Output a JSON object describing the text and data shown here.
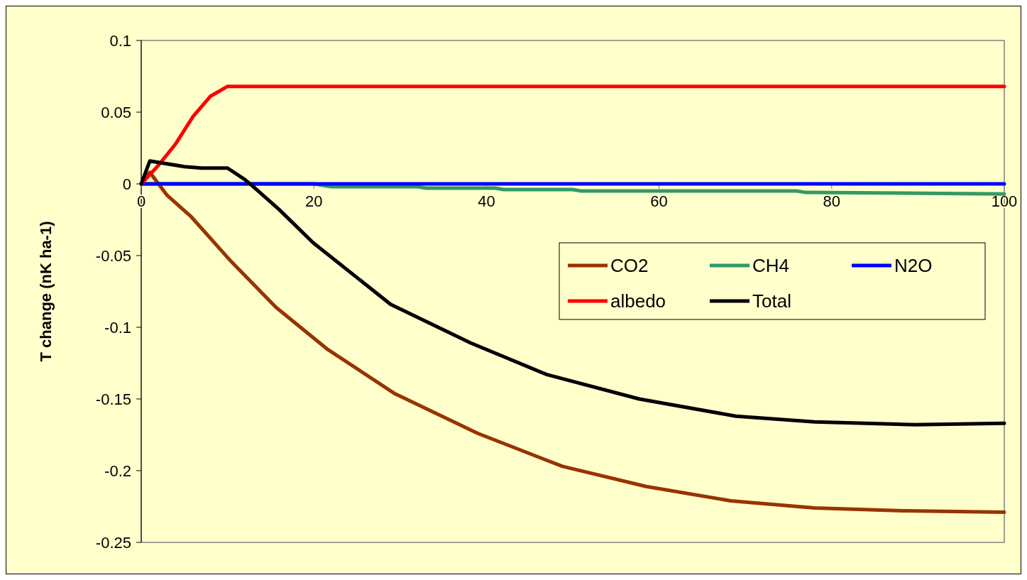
{
  "chart_data": {
    "type": "line",
    "ylabel": "T change (nK ha-1)",
    "xlim": [
      0,
      100
    ],
    "xticks": [
      0,
      20,
      40,
      60,
      80,
      100
    ],
    "ylim": [
      -0.25,
      0.1
    ],
    "yticks": [
      -0.25,
      -0.2,
      -0.15,
      -0.1,
      -0.05,
      0,
      0.05,
      0.1
    ],
    "legend": "right",
    "marker": "none",
    "line_style": "solid",
    "series": [
      {
        "name": "CO2",
        "color": "#993300",
        "x": [
          0,
          1,
          3,
          5.8,
          10.4,
          15.6,
          21.5,
          29.3,
          39,
          48.8,
          58.5,
          68.3,
          78,
          88.5,
          100
        ],
        "values": [
          0,
          0.008,
          -0.008,
          -0.023,
          -0.054,
          -0.086,
          -0.115,
          -0.146,
          -0.174,
          -0.197,
          -0.211,
          -0.221,
          -0.226,
          -0.228,
          -0.229
        ]
      },
      {
        "name": "CH4",
        "color": "#339966",
        "x": [
          0,
          20,
          22,
          32,
          33,
          41,
          42,
          50,
          51,
          76,
          77,
          100
        ],
        "values": [
          0,
          0,
          -0.002,
          -0.002,
          -0.003,
          -0.003,
          -0.004,
          -0.004,
          -0.005,
          -0.005,
          -0.006,
          -0.007
        ]
      },
      {
        "name": "N2O",
        "color": "#0000ff",
        "x": [
          0,
          100
        ],
        "values": [
          0,
          0
        ]
      },
      {
        "name": "albedo",
        "color": "#ff0000",
        "x": [
          0,
          2,
          4,
          6,
          8,
          10,
          100
        ],
        "values": [
          0,
          0.013,
          0.028,
          0.047,
          0.061,
          0.068,
          0.068
        ]
      },
      {
        "name": "Total",
        "color": "#000000",
        "x": [
          0,
          1,
          5,
          7,
          10,
          12,
          13,
          16,
          19.9,
          28.9,
          38.2,
          47,
          57.7,
          68.9,
          78,
          89.7,
          100
        ],
        "values": [
          0,
          0.016,
          0.012,
          0.011,
          0.011,
          0.003,
          -0.002,
          -0.018,
          -0.041,
          -0.084,
          -0.111,
          -0.133,
          -0.15,
          -0.162,
          -0.166,
          -0.168,
          -0.167
        ]
      }
    ]
  }
}
